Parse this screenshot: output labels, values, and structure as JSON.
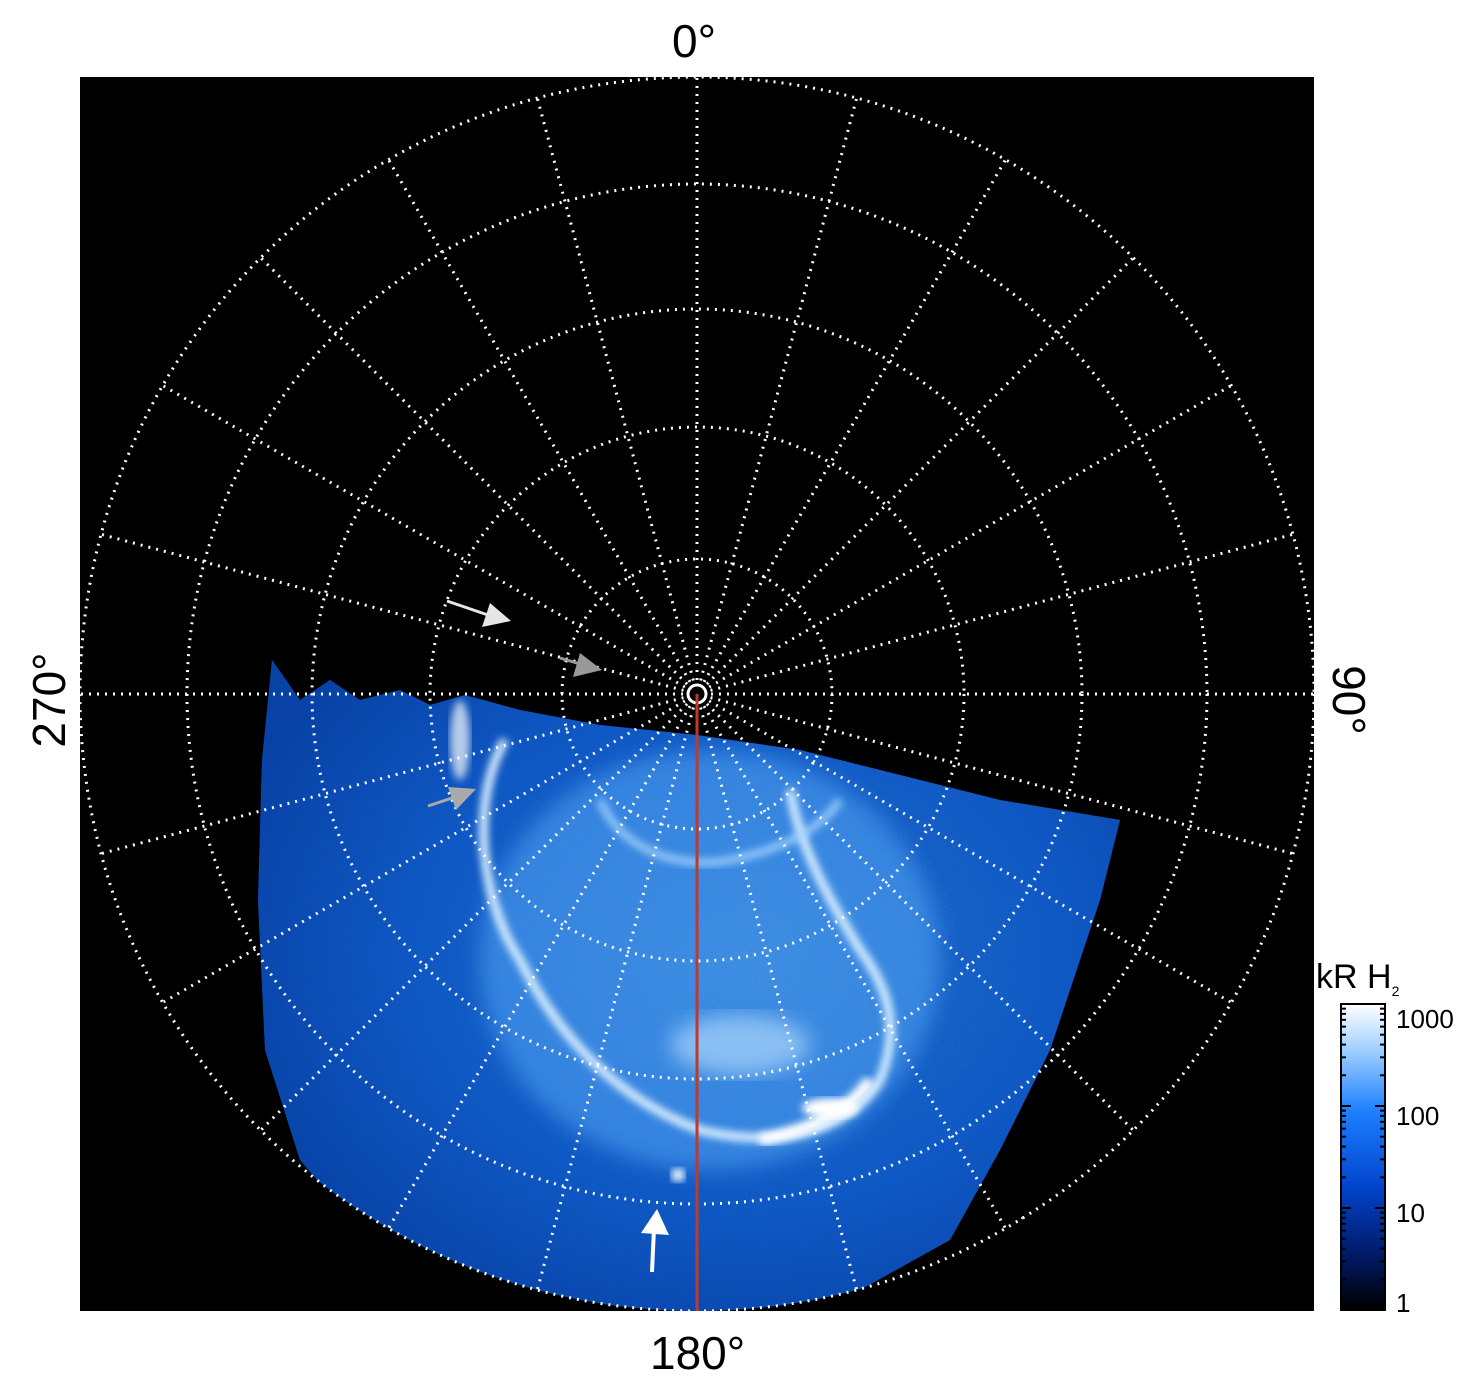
{
  "figure": {
    "orientation_labels": {
      "top": "0°",
      "right": "90°",
      "bottom": "180°",
      "left": "270°"
    },
    "colorbar": {
      "title": "kR H",
      "title_subscript": "2",
      "scale": "log",
      "range": [
        1,
        1000
      ],
      "ticks": [
        "1000",
        "100",
        "10",
        "1"
      ],
      "colors": [
        "#000000",
        "#001a66",
        "#0044cc",
        "#1e7fff",
        "#9fd0ff",
        "#ffffff"
      ]
    },
    "image": {
      "background": "#000000",
      "grid_color": "#ffffff",
      "grid_style": "dotted",
      "meridian_line_color": "#c0392b",
      "arrow_colors": [
        "#ffffff",
        "#aaaaaa"
      ]
    }
  }
}
